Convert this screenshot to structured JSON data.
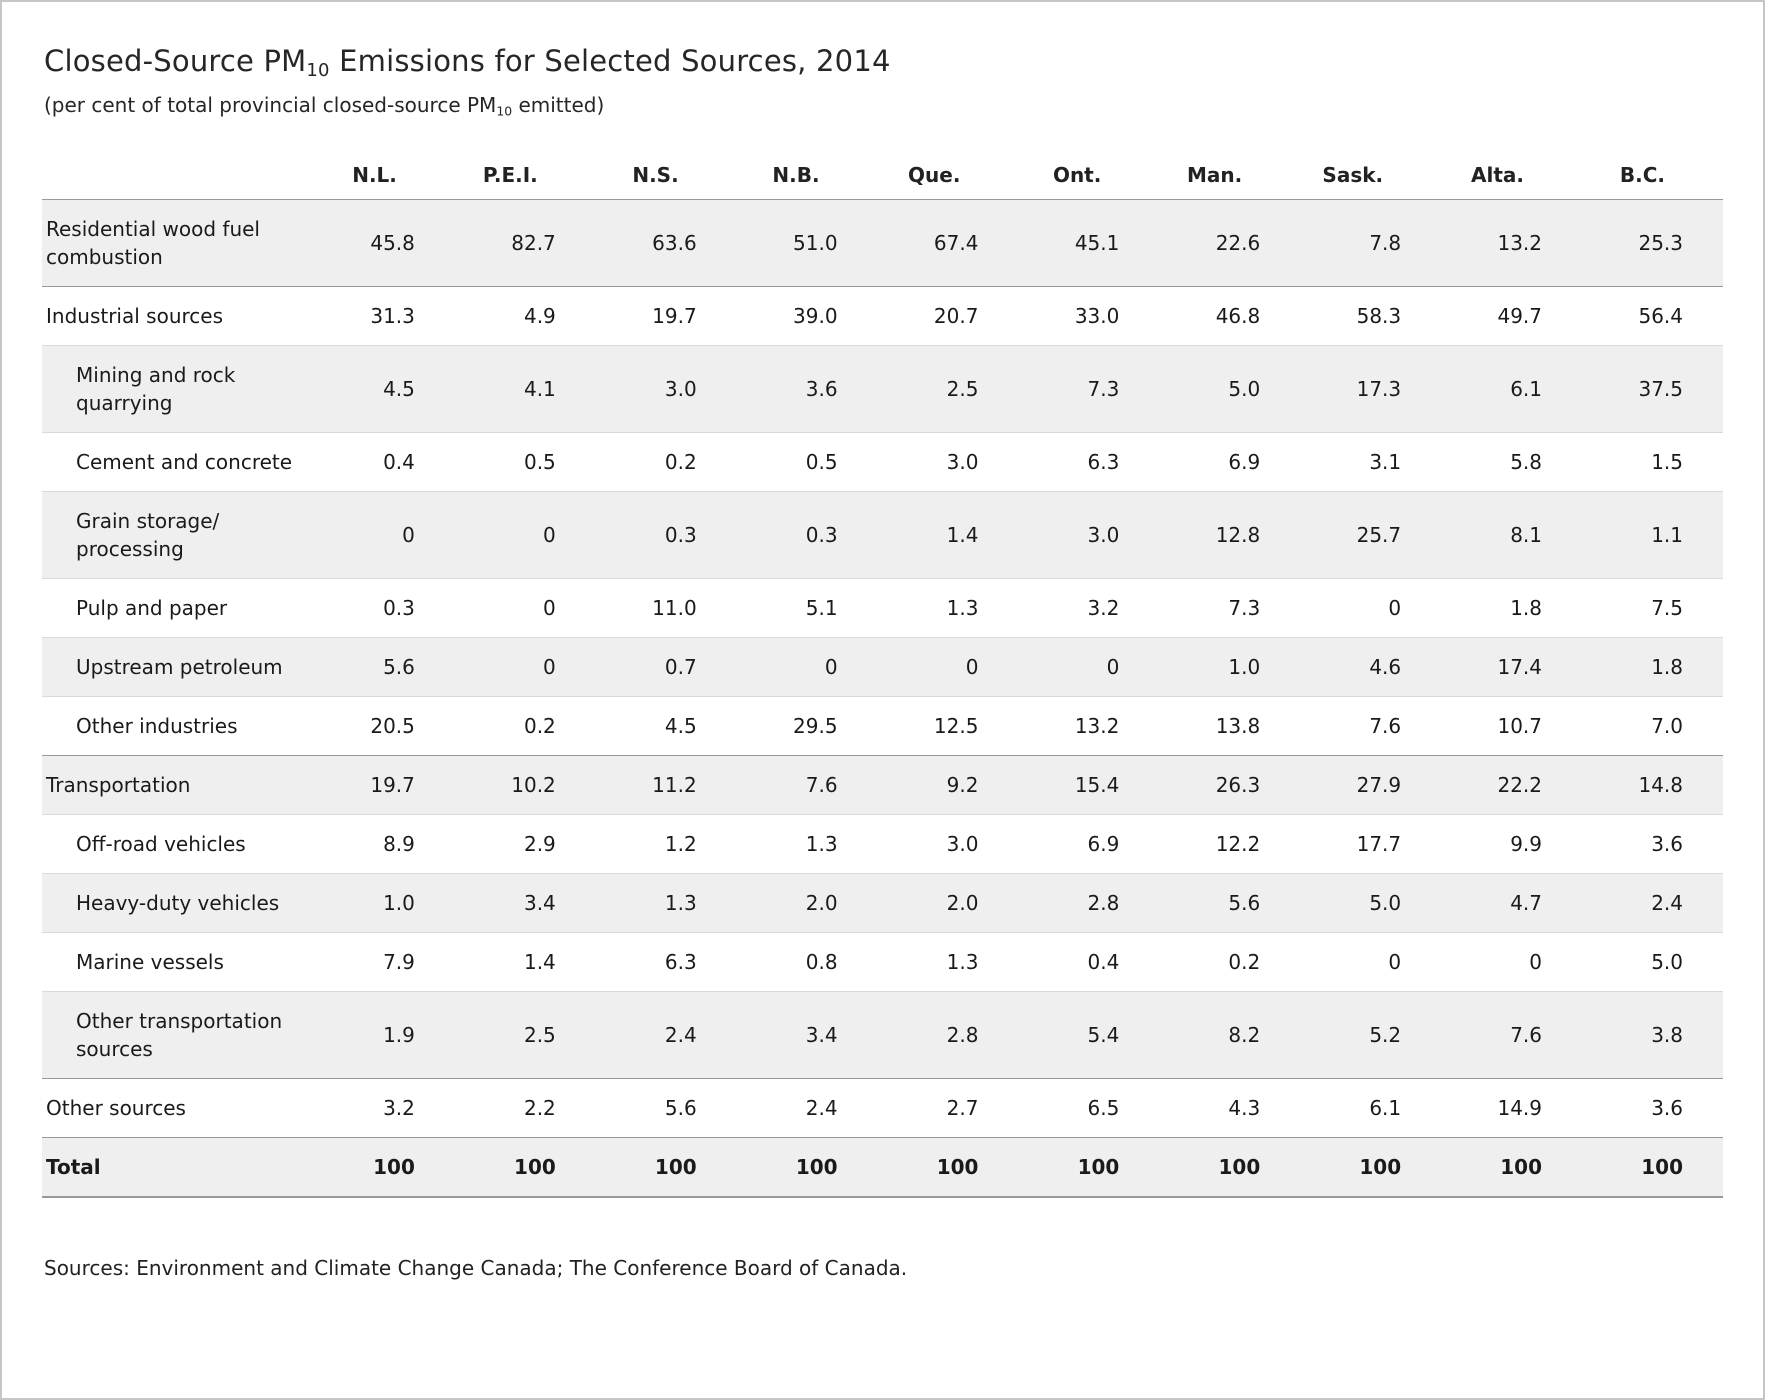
{
  "header": {
    "title_pre": "Closed-Source PM",
    "title_sub": "10",
    "title_post": " Emissions for Selected Sources, 2014",
    "subtitle_pre": "(per cent of total provincial closed-source PM",
    "subtitle_sub": "10",
    "subtitle_post": " emitted)"
  },
  "chart_data": {
    "type": "table",
    "title": "Closed-Source PM10 Emissions for Selected Sources, 2014",
    "subtitle": "(per cent of total provincial closed-source PM10 emitted)",
    "unit": "per cent of total provincial closed-source PM10 emitted",
    "columns": [
      "N.L.",
      "P.E.I.",
      "N.S.",
      "N.B.",
      "Que.",
      "Ont.",
      "Man.",
      "Sask.",
      "Alta.",
      "B.C."
    ],
    "rows": [
      {
        "label": "Residential wood fuel combustion",
        "indent": 0,
        "emphasis": false,
        "values": [
          "45.8",
          "82.7",
          "63.6",
          "51.0",
          "67.4",
          "45.1",
          "22.6",
          "7.8",
          "13.2",
          "25.3"
        ]
      },
      {
        "label": "Industrial sources",
        "indent": 0,
        "emphasis": false,
        "values": [
          "31.3",
          "4.9",
          "19.7",
          "39.0",
          "20.7",
          "33.0",
          "46.8",
          "58.3",
          "49.7",
          "56.4"
        ]
      },
      {
        "label": "Mining and rock quarrying",
        "indent": 1,
        "emphasis": false,
        "values": [
          "4.5",
          "4.1",
          "3.0",
          "3.6",
          "2.5",
          "7.3",
          "5.0",
          "17.3",
          "6.1",
          "37.5"
        ]
      },
      {
        "label": "Cement and concrete",
        "indent": 1,
        "emphasis": false,
        "values": [
          "0.4",
          "0.5",
          "0.2",
          "0.5",
          "3.0",
          "6.3",
          "6.9",
          "3.1",
          "5.8",
          "1.5"
        ]
      },
      {
        "label": "Grain storage/ processing",
        "indent": 1,
        "emphasis": false,
        "values": [
          "0",
          "0",
          "0.3",
          "0.3",
          "1.4",
          "3.0",
          "12.8",
          "25.7",
          "8.1",
          "1.1"
        ]
      },
      {
        "label": "Pulp and paper",
        "indent": 1,
        "emphasis": false,
        "values": [
          "0.3",
          "0",
          "11.0",
          "5.1",
          "1.3",
          "3.2",
          "7.3",
          "0",
          "1.8",
          "7.5"
        ]
      },
      {
        "label": "Upstream petroleum",
        "indent": 1,
        "emphasis": false,
        "values": [
          "5.6",
          "0",
          "0.7",
          "0",
          "0",
          "0",
          "1.0",
          "4.6",
          "17.4",
          "1.8"
        ]
      },
      {
        "label": "Other industries",
        "indent": 1,
        "emphasis": false,
        "values": [
          "20.5",
          "0.2",
          "4.5",
          "29.5",
          "12.5",
          "13.2",
          "13.8",
          "7.6",
          "10.7",
          "7.0"
        ]
      },
      {
        "label": "Transportation",
        "indent": 0,
        "emphasis": false,
        "values": [
          "19.7",
          "10.2",
          "11.2",
          "7.6",
          "9.2",
          "15.4",
          "26.3",
          "27.9",
          "22.2",
          "14.8"
        ]
      },
      {
        "label": "Off-road vehicles",
        "indent": 1,
        "emphasis": false,
        "values": [
          "8.9",
          "2.9",
          "1.2",
          "1.3",
          "3.0",
          "6.9",
          "12.2",
          "17.7",
          "9.9",
          "3.6"
        ]
      },
      {
        "label": "Heavy-duty vehicles",
        "indent": 1,
        "emphasis": false,
        "values": [
          "1.0",
          "3.4",
          "1.3",
          "2.0",
          "2.0",
          "2.8",
          "5.6",
          "5.0",
          "4.7",
          "2.4"
        ]
      },
      {
        "label": "Marine vessels",
        "indent": 1,
        "emphasis": false,
        "values": [
          "7.9",
          "1.4",
          "6.3",
          "0.8",
          "1.3",
          "0.4",
          "0.2",
          "0",
          "0",
          "5.0"
        ]
      },
      {
        "label": "Other transportation sources",
        "indent": 1,
        "emphasis": false,
        "values": [
          "1.9",
          "2.5",
          "2.4",
          "3.4",
          "2.8",
          "5.4",
          "8.2",
          "5.2",
          "7.6",
          "3.8"
        ]
      },
      {
        "label": "Other sources",
        "indent": 0,
        "emphasis": false,
        "values": [
          "3.2",
          "2.2",
          "5.6",
          "2.4",
          "2.7",
          "6.5",
          "4.3",
          "6.1",
          "14.9",
          "3.6"
        ]
      },
      {
        "label": "Total",
        "indent": 0,
        "emphasis": true,
        "values": [
          "100",
          "100",
          "100",
          "100",
          "100",
          "100",
          "100",
          "100",
          "100",
          "100"
        ]
      }
    ]
  },
  "footer": {
    "sources": "Sources: Environment and Climate Change Canada; The Conference Board of Canada."
  },
  "colors": {
    "row_stripe": "#efefef",
    "border_dark": "#999999",
    "border_light": "#d9d9d9",
    "text": "#1a1a1a",
    "frame": "#c6c6c6"
  }
}
